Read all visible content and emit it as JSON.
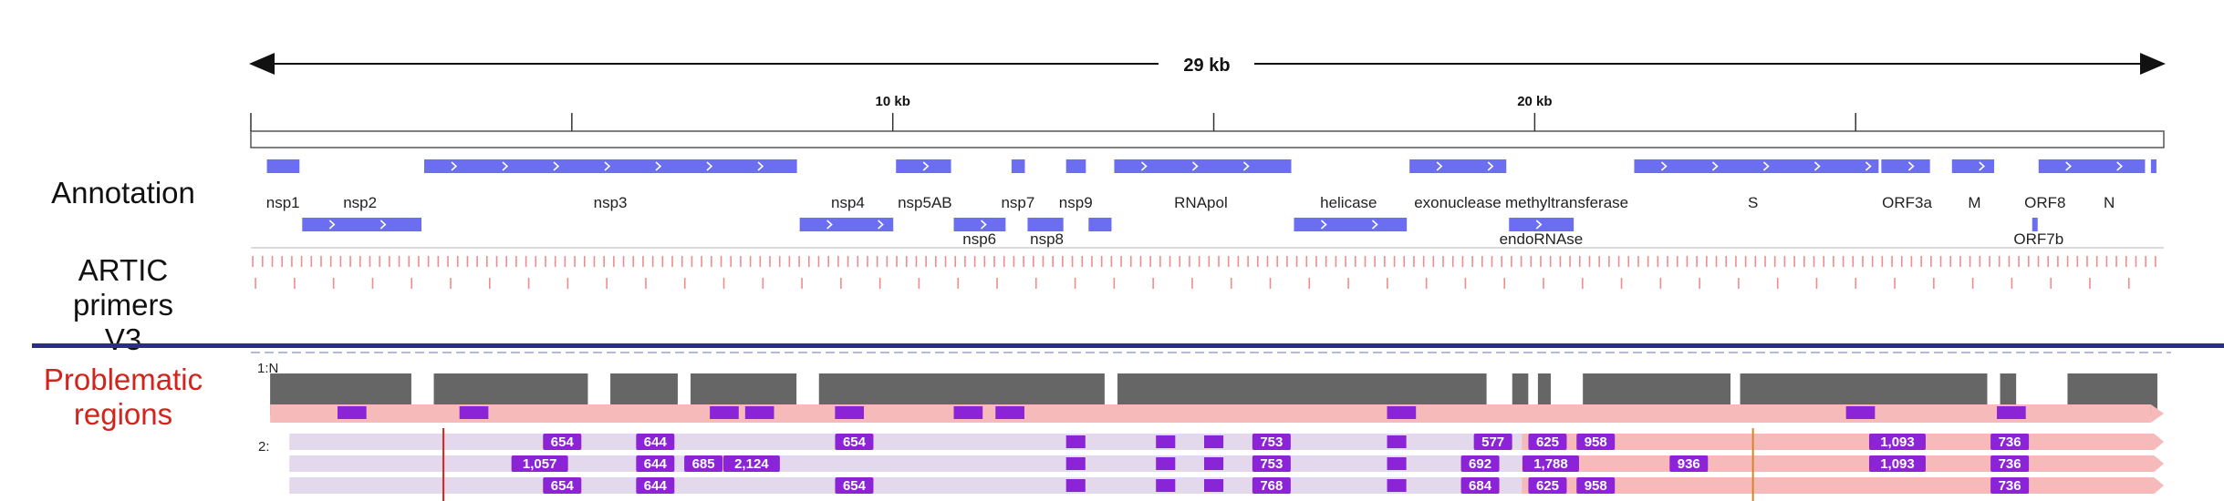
{
  "genome_length_label": "29 kb",
  "ruler": {
    "ticks": [
      {
        "label": "",
        "pos_bp": 0
      },
      {
        "label": "",
        "pos_bp": 5000
      },
      {
        "label": "10 kb",
        "pos_bp": 10000
      },
      {
        "label": "",
        "pos_bp": 15000
      },
      {
        "label": "20 kb",
        "pos_bp": 20000
      },
      {
        "label": "",
        "pos_bp": 25000
      }
    ],
    "max_bp": 29800
  },
  "tracks": {
    "annotation_label": "Annotation",
    "primers_label": "ARTIC primers V3",
    "problematic_label_line1": "Problematic",
    "problematic_label_line2": "regions"
  },
  "genes_row1": [
    {
      "name": "nsp1",
      "start": 250,
      "end": 800
    },
    {
      "name": "nsp3",
      "start": 2700,
      "end": 8550
    },
    {
      "name": "nsp5AB",
      "start": 10050,
      "end": 10950
    },
    {
      "name": "nsp7",
      "start": 11850,
      "end": 12100
    },
    {
      "name": "nsp9",
      "start": 12700,
      "end": 13050
    },
    {
      "name": "RNApol",
      "start": 13450,
      "end": 16250
    },
    {
      "name": "exonuclease",
      "start": 18050,
      "end": 19600
    },
    {
      "name": "S",
      "start": 21550,
      "end": 25400
    },
    {
      "name": "ORF3a",
      "start": 25400,
      "end": 26200
    },
    {
      "name": "M",
      "start": 26500,
      "end": 27200
    },
    {
      "name": "ORF8",
      "start": 27850,
      "end": 29550
    },
    {
      "name": "N",
      "start": 29600,
      "end": 29700
    }
  ],
  "genes_row2": [
    {
      "name": "nsp2",
      "start": 800,
      "end": 2700
    },
    {
      "name": "nsp4",
      "start": 8550,
      "end": 10050
    },
    {
      "name": "nsp6",
      "start": 10950,
      "end": 11800
    },
    {
      "name": "nsp8",
      "start": 12100,
      "end": 12700
    },
    {
      "name": "",
      "start": 13050,
      "end": 13450
    },
    {
      "name": "helicase",
      "start": 16250,
      "end": 18050
    },
    {
      "name": "endoRNAse",
      "start": 19600,
      "end": 20650
    },
    {
      "name": "ORF7b",
      "start": 27750,
      "end": 27850
    }
  ],
  "gene_labels_row1": [
    {
      "text": "nsp1",
      "pos_bp": 500
    },
    {
      "text": "nsp2",
      "pos_bp": 1700
    },
    {
      "text": "nsp3",
      "pos_bp": 5600
    },
    {
      "text": "nsp4",
      "pos_bp": 9300
    },
    {
      "text": "nsp5AB",
      "pos_bp": 10500
    },
    {
      "text": "nsp7",
      "pos_bp": 11950
    },
    {
      "text": "nsp9",
      "pos_bp": 12850
    },
    {
      "text": "RNApol",
      "pos_bp": 14800
    },
    {
      "text": "helicase",
      "pos_bp": 17100
    },
    {
      "text": "exonuclease",
      "pos_bp": 18800
    },
    {
      "text": "methyltransferase",
      "pos_bp": 20500
    },
    {
      "text": "S",
      "pos_bp": 23400
    },
    {
      "text": "ORF3a",
      "pos_bp": 25800
    },
    {
      "text": "M",
      "pos_bp": 26850
    },
    {
      "text": "ORF8",
      "pos_bp": 27950
    },
    {
      "text": "N",
      "pos_bp": 28950
    }
  ],
  "gene_labels_row2": [
    {
      "text": "nsp6",
      "pos_bp": 11350
    },
    {
      "text": "nsp8",
      "pos_bp": 12400
    },
    {
      "text": "endoRNAse",
      "pos_bp": 20100
    },
    {
      "text": "ORF7b",
      "pos_bp": 27850
    }
  ],
  "coverage_label": "1:N",
  "row2_label": "2:",
  "badges": [
    {
      "text": "654",
      "row": 0,
      "pos_bp": 4850
    },
    {
      "text": "644",
      "row": 0,
      "pos_bp": 6300
    },
    {
      "text": "654",
      "row": 0,
      "pos_bp": 9400
    },
    {
      "text": "753",
      "row": 0,
      "pos_bp": 15900
    },
    {
      "text": "577",
      "row": 0,
      "pos_bp": 19350
    },
    {
      "text": "625",
      "row": 0,
      "pos_bp": 20200
    },
    {
      "text": "958",
      "row": 0,
      "pos_bp": 20950
    },
    {
      "text": "1,093",
      "row": 0,
      "pos_bp": 25650
    },
    {
      "text": "736",
      "row": 0,
      "pos_bp": 27400
    },
    {
      "text": "1,057",
      "row": 1,
      "pos_bp": 4500
    },
    {
      "text": "644",
      "row": 1,
      "pos_bp": 6300
    },
    {
      "text": "685",
      "row": 1,
      "pos_bp": 7050
    },
    {
      "text": "2,124",
      "row": 1,
      "pos_bp": 7800
    },
    {
      "text": "753",
      "row": 1,
      "pos_bp": 15900
    },
    {
      "text": "692",
      "row": 1,
      "pos_bp": 19150
    },
    {
      "text": "1,788",
      "row": 1,
      "pos_bp": 20250
    },
    {
      "text": "936",
      "row": 1,
      "pos_bp": 22400
    },
    {
      "text": "1,093",
      "row": 1,
      "pos_bp": 25650
    },
    {
      "text": "736",
      "row": 1,
      "pos_bp": 27400
    },
    {
      "text": "654",
      "row": 2,
      "pos_bp": 4850
    },
    {
      "text": "644",
      "row": 2,
      "pos_bp": 6300
    },
    {
      "text": "654",
      "row": 2,
      "pos_bp": 9400
    },
    {
      "text": "768",
      "row": 2,
      "pos_bp": 15900
    },
    {
      "text": "684",
      "row": 2,
      "pos_bp": 19150
    },
    {
      "text": "625",
      "row": 2,
      "pos_bp": 20200
    },
    {
      "text": "958",
      "row": 2,
      "pos_bp": 20950
    },
    {
      "text": "736",
      "row": 2,
      "pos_bp": 27400
    }
  ],
  "colors": {
    "gene": "#6b6ef0",
    "primer": "#f08c8c",
    "separator": "#2c2c8c",
    "coverage": "#666666",
    "problem_band": "#f7baba",
    "read": "#e4d9ec",
    "marker": "#8b23d6"
  }
}
